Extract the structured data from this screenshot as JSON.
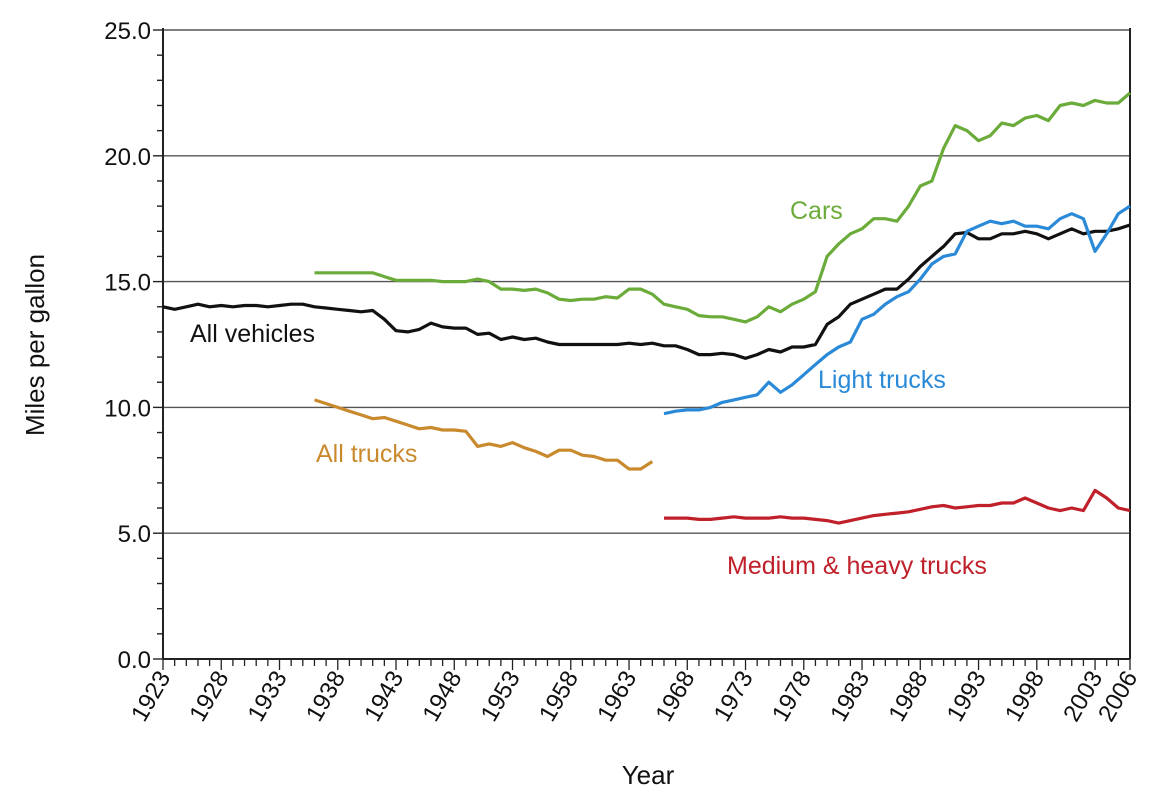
{
  "chart_data": {
    "type": "line",
    "title": "",
    "xlabel": "Year",
    "ylabel": "Miles per gallon",
    "xlim": [
      1923,
      2006
    ],
    "ylim": [
      0,
      25
    ],
    "grid": "horizontal",
    "x_tick_labels": [
      "1923",
      "1928",
      "1933",
      "1938",
      "1943",
      "1948",
      "1953",
      "1958",
      "1963",
      "1968",
      "1973",
      "1978",
      "1983",
      "1988",
      "1993",
      "1998",
      "2003",
      "2006"
    ],
    "y_tick_labels": [
      "0.0",
      "5.0",
      "10.0",
      "15.0",
      "20.0",
      "25.0"
    ],
    "series": [
      {
        "name": "All vehicles",
        "color": "#111111",
        "x": [
          1923,
          1924,
          1925,
          1926,
          1927,
          1928,
          1929,
          1930,
          1931,
          1932,
          1933,
          1934,
          1935,
          1936,
          1937,
          1938,
          1939,
          1940,
          1941,
          1942,
          1943,
          1944,
          1945,
          1946,
          1947,
          1948,
          1949,
          1950,
          1951,
          1952,
          1953,
          1954,
          1955,
          1956,
          1957,
          1958,
          1959,
          1960,
          1961,
          1962,
          1963,
          1964,
          1965,
          1966,
          1967,
          1968,
          1969,
          1970,
          1971,
          1972,
          1973,
          1974,
          1975,
          1976,
          1977,
          1978,
          1979,
          1980,
          1981,
          1982,
          1983,
          1984,
          1985,
          1986,
          1987,
          1988,
          1989,
          1990,
          1991,
          1992,
          1993,
          1994,
          1995,
          1996,
          1997,
          1998,
          1999,
          2000,
          2001,
          2002,
          2003,
          2004,
          2005,
          2006
        ],
        "y": [
          14.0,
          13.9,
          14.0,
          14.1,
          14.0,
          14.05,
          14.0,
          14.05,
          14.05,
          14.0,
          14.05,
          14.1,
          14.1,
          14.0,
          13.95,
          13.9,
          13.85,
          13.8,
          13.85,
          13.5,
          13.05,
          13.0,
          13.1,
          13.35,
          13.2,
          13.15,
          13.15,
          12.9,
          12.95,
          12.7,
          12.8,
          12.7,
          12.75,
          12.6,
          12.5,
          12.5,
          12.5,
          12.5,
          12.5,
          12.5,
          12.55,
          12.5,
          12.55,
          12.45,
          12.45,
          12.3,
          12.1,
          12.1,
          12.15,
          12.1,
          11.95,
          12.1,
          12.3,
          12.2,
          12.4,
          12.4,
          12.5,
          13.3,
          13.6,
          14.1,
          14.3,
          14.5,
          14.7,
          14.7,
          15.1,
          15.6,
          16.0,
          16.4,
          16.9,
          16.95,
          16.7,
          16.7,
          16.9,
          16.9,
          17.0,
          16.9,
          16.7,
          16.9,
          17.1,
          16.9,
          17.0,
          17.0,
          17.1,
          17.25
        ]
      },
      {
        "name": "Cars",
        "color": "#6aab3a",
        "x": [
          1936,
          1937,
          1938,
          1939,
          1940,
          1941,
          1942,
          1943,
          1944,
          1945,
          1946,
          1947,
          1948,
          1949,
          1950,
          1951,
          1952,
          1953,
          1954,
          1955,
          1956,
          1957,
          1958,
          1959,
          1960,
          1961,
          1962,
          1963,
          1964,
          1965,
          1966,
          1967,
          1968,
          1969,
          1970,
          1971,
          1972,
          1973,
          1974,
          1975,
          1976,
          1977,
          1978,
          1979,
          1980,
          1981,
          1982,
          1983,
          1984,
          1985,
          1986,
          1987,
          1988,
          1989,
          1990,
          1991,
          1992,
          1993,
          1994,
          1995,
          1996,
          1997,
          1998,
          1999,
          2000,
          2001,
          2002,
          2003,
          2004,
          2005,
          2006
        ],
        "y": [
          15.35,
          15.35,
          15.35,
          15.35,
          15.35,
          15.35,
          15.2,
          15.05,
          15.05,
          15.05,
          15.05,
          15.0,
          15.0,
          15.0,
          15.1,
          15.0,
          14.7,
          14.7,
          14.65,
          14.7,
          14.55,
          14.3,
          14.25,
          14.3,
          14.3,
          14.4,
          14.35,
          14.7,
          14.7,
          14.5,
          14.1,
          14.0,
          13.9,
          13.65,
          13.6,
          13.6,
          13.5,
          13.4,
          13.6,
          14.0,
          13.8,
          14.1,
          14.3,
          14.6,
          16.0,
          16.5,
          16.9,
          17.1,
          17.5,
          17.5,
          17.4,
          18.0,
          18.8,
          19.0,
          20.3,
          21.2,
          21.0,
          20.6,
          20.8,
          21.3,
          21.2,
          21.5,
          21.6,
          21.4,
          22.0,
          22.1,
          22.0,
          22.2,
          22.1,
          22.1,
          22.5
        ]
      },
      {
        "name": "Light trucks",
        "color": "#2a8ad8",
        "x": [
          1966,
          1967,
          1968,
          1969,
          1970,
          1971,
          1972,
          1973,
          1974,
          1975,
          1976,
          1977,
          1978,
          1979,
          1980,
          1981,
          1982,
          1983,
          1984,
          1985,
          1986,
          1987,
          1988,
          1989,
          1990,
          1991,
          1992,
          1993,
          1994,
          1995,
          1996,
          1997,
          1998,
          1999,
          2000,
          2001,
          2002,
          2003,
          2004,
          2005,
          2006
        ],
        "y": [
          9.75,
          9.85,
          9.9,
          9.9,
          10.0,
          10.2,
          10.3,
          10.4,
          10.5,
          11.0,
          10.6,
          10.9,
          11.3,
          11.7,
          12.1,
          12.4,
          12.6,
          13.5,
          13.7,
          14.1,
          14.4,
          14.6,
          15.1,
          15.7,
          16.0,
          16.1,
          17.0,
          17.2,
          17.4,
          17.3,
          17.4,
          17.2,
          17.2,
          17.1,
          17.5,
          17.7,
          17.5,
          16.2,
          16.9,
          17.7,
          18.0
        ]
      },
      {
        "name": "All trucks",
        "color": "#c98a2e",
        "x": [
          1936,
          1937,
          1938,
          1939,
          1940,
          1941,
          1942,
          1943,
          1944,
          1945,
          1946,
          1947,
          1948,
          1949,
          1950,
          1951,
          1952,
          1953,
          1954,
          1955,
          1956,
          1957,
          1958,
          1959,
          1960,
          1961,
          1962,
          1963,
          1964,
          1965
        ],
        "y": [
          10.3,
          10.15,
          10.0,
          9.85,
          9.7,
          9.55,
          9.6,
          9.45,
          9.3,
          9.15,
          9.2,
          9.1,
          9.1,
          9.05,
          8.45,
          8.55,
          8.45,
          8.6,
          8.4,
          8.25,
          8.05,
          8.3,
          8.3,
          8.1,
          8.05,
          7.9,
          7.9,
          7.55,
          7.55,
          7.85
        ]
      },
      {
        "name": "Medium & heavy trucks",
        "color": "#c0202a",
        "x": [
          1966,
          1967,
          1968,
          1969,
          1970,
          1971,
          1972,
          1973,
          1974,
          1975,
          1976,
          1977,
          1978,
          1979,
          1980,
          1981,
          1982,
          1983,
          1984,
          1985,
          1986,
          1987,
          1988,
          1989,
          1990,
          1991,
          1992,
          1993,
          1994,
          1995,
          1996,
          1997,
          1998,
          1999,
          2000,
          2001,
          2002,
          2003,
          2004,
          2005,
          2006
        ],
        "y": [
          5.6,
          5.6,
          5.6,
          5.55,
          5.55,
          5.6,
          5.65,
          5.6,
          5.6,
          5.6,
          5.65,
          5.6,
          5.6,
          5.55,
          5.5,
          5.4,
          5.5,
          5.6,
          5.7,
          5.75,
          5.8,
          5.85,
          5.95,
          6.05,
          6.1,
          6.0,
          6.05,
          6.1,
          6.1,
          6.2,
          6.2,
          6.4,
          6.2,
          6.0,
          5.9,
          6.0,
          5.9,
          6.7,
          6.4,
          6.0,
          5.9
        ]
      }
    ]
  }
}
